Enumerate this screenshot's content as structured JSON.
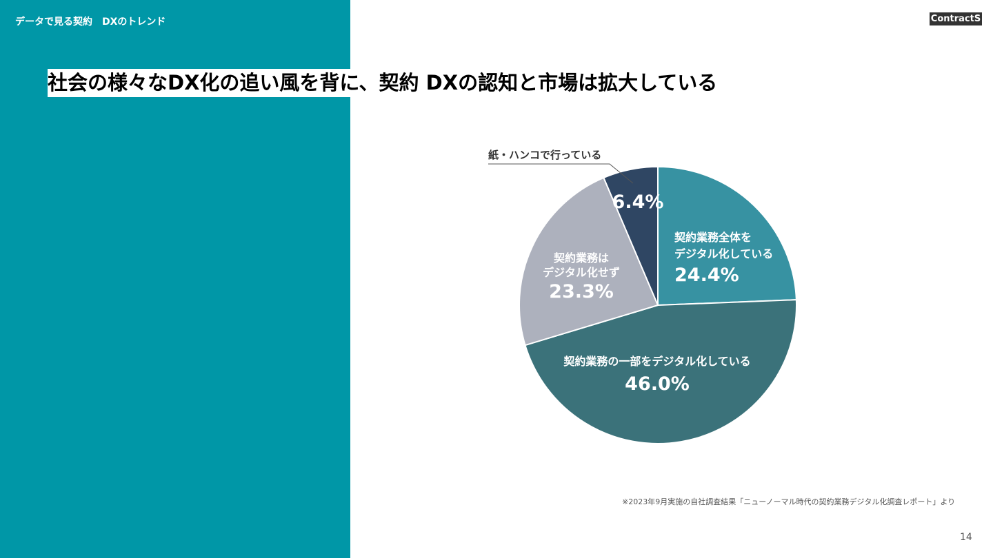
{
  "header": {
    "section_title": "データで見る契約　DXのトレンド",
    "logo_text": "ContractS"
  },
  "headline": "社会の様々なDX化の追い風を背に、契約 DXの認知と市場は拡大している",
  "chart_data": {
    "type": "pie",
    "title": "",
    "slices": [
      {
        "label": "契約業務全体をデジタル化している",
        "label_lines": [
          "契約業務全体を",
          "デジタル化している"
        ],
        "value": 24.4,
        "value_text": "24.4%",
        "color": "#3792a2"
      },
      {
        "label": "契約業務の一部をデジタル化している",
        "label_lines": [
          "契約業務の一部をデジタル化している"
        ],
        "value": 46.0,
        "value_text": "46.0%",
        "color": "#3b727a"
      },
      {
        "label": "契約業務はデジタル化せず",
        "label_lines": [
          "契約業務は",
          "デジタル化せず"
        ],
        "value": 23.3,
        "value_text": "23.3%",
        "color": "#adb1bd"
      },
      {
        "label": "紙・ハンコで行っている",
        "label_lines": [],
        "external_label": "紙・ハンコで行っている",
        "value": 6.4,
        "value_text": "6.4%",
        "color": "#2f4663"
      }
    ]
  },
  "footer": {
    "source_note": "※2023年9月実施の自社調査結果「ニューノーマル時代の契約業務デジタル化調査レポート」より",
    "page_number": "14"
  }
}
